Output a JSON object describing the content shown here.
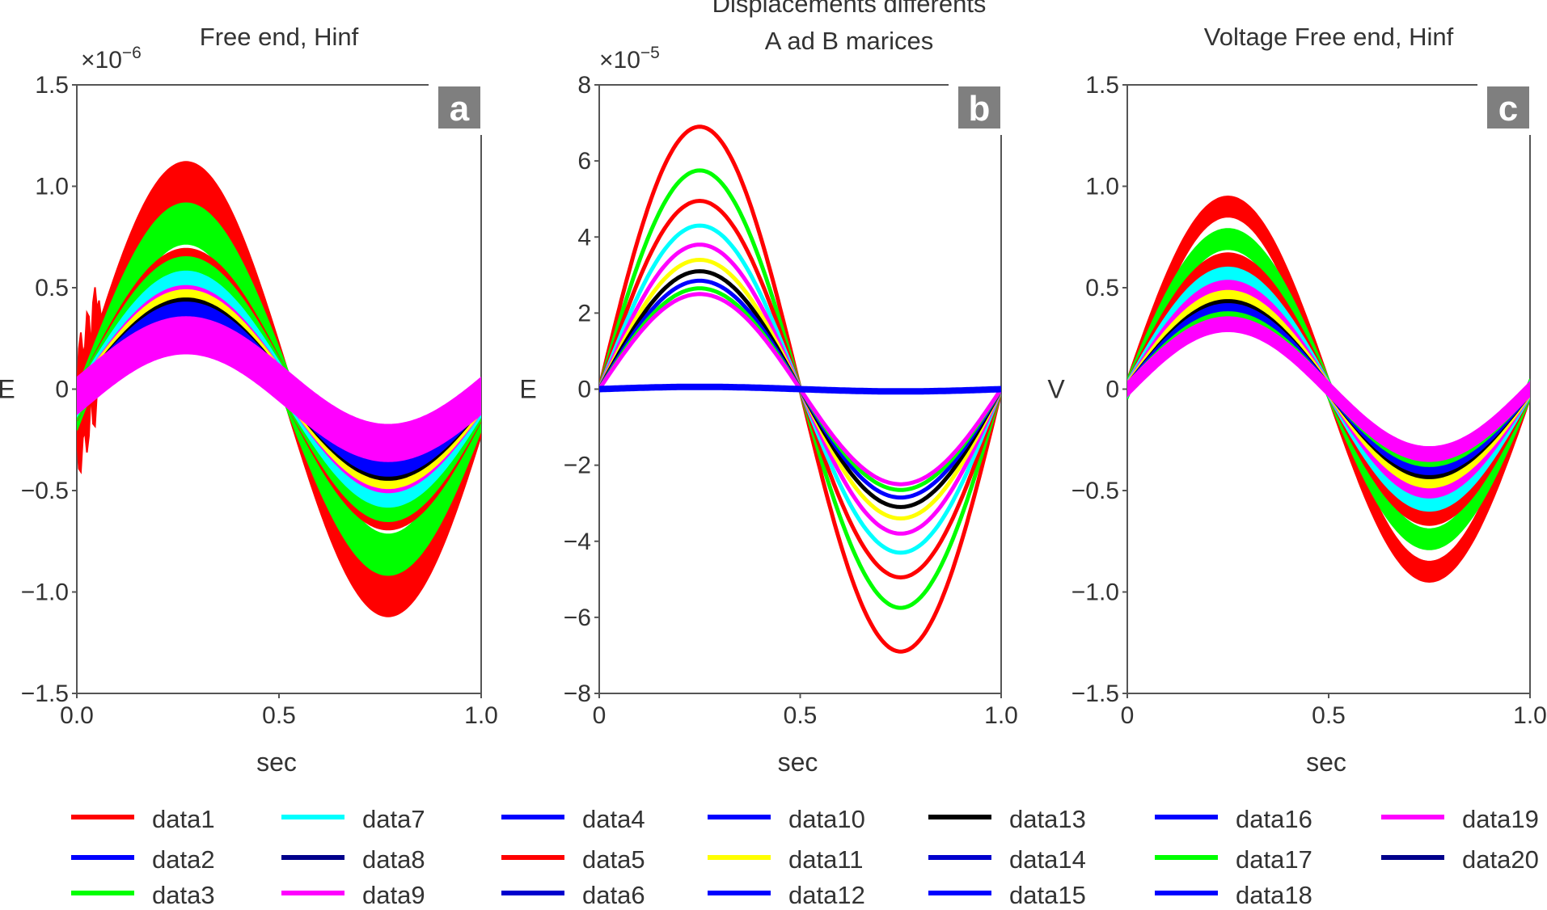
{
  "chart_data": [
    {
      "type": "line",
      "panel_label": "a",
      "title": "Free end, Hinf",
      "title_lines": [
        "Free end, Hinf"
      ],
      "xlabel": "sec",
      "ylabel": "E",
      "multiplier": "×10",
      "multiplier_exp": "−6",
      "xlim": [
        0,
        1
      ],
      "ylim": [
        -1.5,
        1.5
      ],
      "x_ticks": [
        "0.0",
        "0.5",
        "1.0"
      ],
      "y_ticks": [
        "1.5",
        "1.0",
        "0.5",
        "0",
        "−0.5",
        "−1.0",
        "−1.5"
      ],
      "y_tick_values": [
        1.5,
        1.0,
        0.5,
        0,
        -0.5,
        -1.0,
        -1.5
      ],
      "curve": "noisy_sine_phase_0.2",
      "series": [
        {
          "name": "data1",
          "amplitude": 1.0,
          "color": "#ff0000",
          "band": 0.1
        },
        {
          "name": "data17",
          "amplitude": 0.8,
          "color": "#00ff00",
          "band": 0.1
        },
        {
          "name": "data5",
          "amplitude": 0.6,
          "color": "#ff0000",
          "band": 0.08
        },
        {
          "name": "data3",
          "amplitude": 0.56,
          "color": "#00ff00",
          "band": 0.08
        },
        {
          "name": "data7",
          "amplitude": 0.5,
          "color": "#00ffff",
          "band": 0.07
        },
        {
          "name": "data9",
          "amplitude": 0.44,
          "color": "#ff00ff",
          "band": 0.06
        },
        {
          "name": "data11",
          "amplitude": 0.42,
          "color": "#ffff00",
          "band": 0.06
        },
        {
          "name": "data13",
          "amplitude": 0.39,
          "color": "#000000",
          "band": 0.05
        },
        {
          "name": "data14",
          "amplitude": 0.37,
          "color": "#0000ff",
          "band": 0.05
        },
        {
          "name": "data19",
          "amplitude": 0.26,
          "color": "#ff00ff",
          "band": 0.09
        }
      ]
    },
    {
      "type": "line",
      "panel_label": "b",
      "title": "Displacements differents A ad B marices",
      "title_lines": [
        "Displacements differents",
        "A ad B marices"
      ],
      "xlabel": "sec",
      "ylabel": "E",
      "multiplier": "×10",
      "multiplier_exp": "−5",
      "xlim": [
        0,
        1
      ],
      "ylim": [
        -8,
        8
      ],
      "x_ticks": [
        "0",
        "0.5",
        "1.0"
      ],
      "y_ticks": [
        "8",
        "6",
        "4",
        "2",
        "0",
        "−2",
        "−4",
        "−6",
        "−8"
      ],
      "y_tick_values": [
        8,
        6,
        4,
        2,
        0,
        -2,
        -4,
        -6,
        -8
      ],
      "curve": "sine",
      "series": [
        {
          "name": "data1",
          "amplitude": 6.9,
          "color": "#ff0000"
        },
        {
          "name": "data3",
          "amplitude": 5.75,
          "color": "#00ff00"
        },
        {
          "name": "data5",
          "amplitude": 4.95,
          "color": "#ff0000"
        },
        {
          "name": "data7",
          "amplitude": 4.3,
          "color": "#00ffff"
        },
        {
          "name": "data9",
          "amplitude": 3.8,
          "color": "#ff00ff"
        },
        {
          "name": "data11",
          "amplitude": 3.4,
          "color": "#ffff00"
        },
        {
          "name": "data13",
          "amplitude": 3.1,
          "color": "#000000"
        },
        {
          "name": "data14",
          "amplitude": 2.85,
          "color": "#0000ff"
        },
        {
          "name": "data17",
          "amplitude": 2.65,
          "color": "#00ff00"
        },
        {
          "name": "data19",
          "amplitude": 2.5,
          "color": "#ff00ff"
        },
        {
          "name": "data20",
          "amplitude": 0.06,
          "color": "#0000ff",
          "thick": true
        }
      ]
    },
    {
      "type": "line",
      "panel_label": "c",
      "title": "Voltage Free end, Hinf",
      "title_lines": [
        "Voltage Free end, Hinf"
      ],
      "xlabel": "sec",
      "ylabel": "V",
      "xlim": [
        0,
        1
      ],
      "ylim": [
        -1.5,
        1.5
      ],
      "x_ticks": [
        "0",
        "0.5",
        "1.0"
      ],
      "y_ticks": [
        "1.5",
        "1.0",
        "0.5",
        "0",
        "−0.5",
        "−1.0",
        "−1.5"
      ],
      "y_tick_values": [
        1.5,
        1.0,
        0.5,
        0,
        -0.5,
        -1.0,
        -1.5
      ],
      "curve": "sine",
      "series": [
        {
          "name": "data1",
          "amplitude": 0.9,
          "color": "#ff0000",
          "band": 0.05
        },
        {
          "name": "data3",
          "amplitude": 0.74,
          "color": "#00ff00",
          "band": 0.05
        },
        {
          "name": "data5",
          "amplitude": 0.63,
          "color": "#ff0000",
          "band": 0.04
        },
        {
          "name": "data7",
          "amplitude": 0.56,
          "color": "#00ffff",
          "band": 0.04
        },
        {
          "name": "data9",
          "amplitude": 0.5,
          "color": "#ff00ff",
          "band": 0.035
        },
        {
          "name": "data11",
          "amplitude": 0.45,
          "color": "#ffff00",
          "band": 0.035
        },
        {
          "name": "data13",
          "amplitude": 0.41,
          "color": "#000000",
          "band": 0.03
        },
        {
          "name": "data14",
          "amplitude": 0.39,
          "color": "#0000ff",
          "band": 0.03
        },
        {
          "name": "data17",
          "amplitude": 0.35,
          "color": "#00ff00",
          "band": 0.03
        },
        {
          "name": "data19",
          "amplitude": 0.32,
          "color": "#ff00ff",
          "band": 0.035
        }
      ]
    }
  ],
  "legend": {
    "placement": "bottom",
    "columns": [
      [
        {
          "name": "data1",
          "color": "#ff0000"
        },
        {
          "name": "data2",
          "color": "#0000ff"
        },
        {
          "name": "data3",
          "color": "#00ff00"
        }
      ],
      [
        {
          "name": "data7",
          "color": "#00ffff"
        },
        {
          "name": "data8",
          "color": "#00008b"
        },
        {
          "name": "data9",
          "color": "#ff00ff"
        }
      ],
      [
        {
          "name": "data4",
          "color": "#0000ff"
        },
        {
          "name": "data5",
          "color": "#ff0000"
        },
        {
          "name": "data6",
          "color": "#0000cd"
        }
      ],
      [
        {
          "name": "data10",
          "color": "#0000ff"
        },
        {
          "name": "data11",
          "color": "#ffff00"
        },
        {
          "name": "data12",
          "color": "#0000ff"
        }
      ],
      [
        {
          "name": "data13",
          "color": "#000000"
        },
        {
          "name": "data14",
          "color": "#0000cd"
        },
        {
          "name": "data15",
          "color": "#0000ff"
        }
      ],
      [
        {
          "name": "data16",
          "color": "#0000ff"
        },
        {
          "name": "data17",
          "color": "#00ff00"
        },
        {
          "name": "data18",
          "color": "#0000ff"
        }
      ],
      [
        {
          "name": "data19",
          "color": "#ff00ff"
        },
        {
          "name": "data20",
          "color": "#00008b"
        }
      ]
    ]
  }
}
